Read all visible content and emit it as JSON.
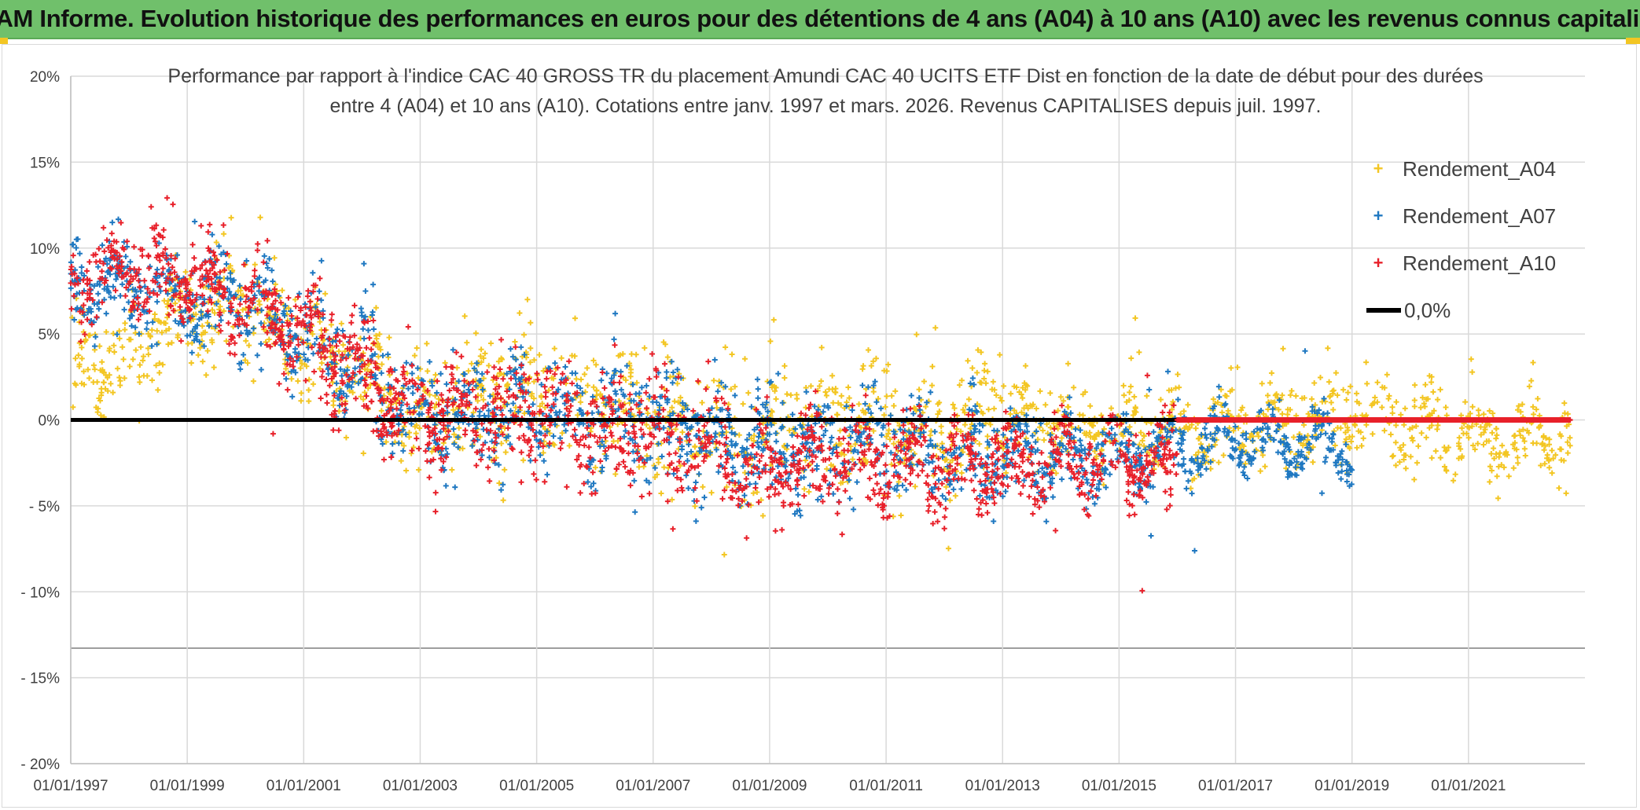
{
  "header": {
    "title": "ADAM Informe. Evolution historique des performances en euros pour des détentions de 4 ans (A04) à 10 ans (A10) avec les revenus connus capitalisés"
  },
  "colors": {
    "banner": "#70c06b",
    "A04": "#f3c623",
    "A07": "#1f78c1",
    "A10": "#e8202a",
    "zero_line": "#000000",
    "grid": "#d9d9d9"
  },
  "chart_data": {
    "type": "scatter",
    "title_line1": "Performance par rapport à l'indice CAC 40 GROSS TR  du placement Amundi CAC 40 UCITS ETF Dist en fonction de la date de début pour des durées",
    "title_line2": "entre 4 (A04) et 10 ans (A10). Cotations entre janv. 1997 et mars. 2026. Revenus CAPITALISES depuis juil. 1997.",
    "xlabel": "",
    "ylabel": "",
    "x_start_year": 1997.0,
    "x_end_year": 2023.0,
    "xlim_years": [
      1997.0,
      2023.0
    ],
    "ylim": [
      -20,
      20
    ],
    "y_ticks": [
      20,
      15,
      10,
      5,
      0,
      -5,
      -10,
      -15,
      -20
    ],
    "y_tick_labels": [
      "20%",
      "15%",
      "10%",
      "5%",
      "0%",
      "- 5%",
      "- 10%",
      "- 15%",
      "- 20%"
    ],
    "x_ticks_years": [
      1997,
      1999,
      2001,
      2003,
      2005,
      2007,
      2009,
      2011,
      2013,
      2015,
      2017,
      2019,
      2021
    ],
    "x_tick_labels": [
      "01/01/1997",
      "01/01/1999",
      "01/01/2001",
      "01/01/2003",
      "01/01/2005",
      "01/01/2007",
      "01/01/2009",
      "01/01/2011",
      "01/01/2013",
      "01/01/2015",
      "01/01/2017",
      "01/01/2019",
      "01/01/2021"
    ],
    "reference_line": {
      "name": "0,0%",
      "y": 0
    },
    "series": [
      {
        "name": "Rendement_A04",
        "marker": "+",
        "x_end_year": 2022.75,
        "trend": [
          [
            1997.0,
            3.0
          ],
          [
            1998.0,
            4.0
          ],
          [
            1999.0,
            6.0
          ],
          [
            2000.0,
            7.0
          ],
          [
            2001.0,
            4.0
          ],
          [
            2002.0,
            3.0
          ],
          [
            2003.0,
            0.0
          ],
          [
            2004.0,
            1.0
          ],
          [
            2005.0,
            2.0
          ],
          [
            2006.0,
            1.5
          ],
          [
            2007.0,
            0.5
          ],
          [
            2008.0,
            -1.0
          ],
          [
            2009.0,
            -0.5
          ],
          [
            2010.0,
            0.0
          ],
          [
            2011.0,
            -0.5
          ],
          [
            2012.0,
            -0.5
          ],
          [
            2013.0,
            0.0
          ],
          [
            2014.0,
            0.0
          ],
          [
            2015.0,
            -0.5
          ],
          [
            2016.0,
            -0.5
          ],
          [
            2017.0,
            -0.5
          ],
          [
            2018.0,
            0.0
          ],
          [
            2019.0,
            0.5
          ],
          [
            2020.0,
            0.0
          ],
          [
            2021.0,
            -1.0
          ],
          [
            2022.75,
            -1.0
          ]
        ],
        "spread": [
          [
            1997.0,
            2.0
          ],
          [
            2000.0,
            2.5
          ],
          [
            2004.0,
            2.8
          ],
          [
            2008.0,
            3.2
          ],
          [
            2012.0,
            2.5
          ],
          [
            2016.0,
            1.8
          ],
          [
            2022.75,
            1.8
          ]
        ]
      },
      {
        "name": "Rendement_A07",
        "marker": "+",
        "x_end_year": 2019.0,
        "trend": [
          [
            1997.0,
            8.0
          ],
          [
            1998.0,
            8.0
          ],
          [
            1999.0,
            7.0
          ],
          [
            2000.0,
            7.0
          ],
          [
            2001.0,
            5.0
          ],
          [
            2002.0,
            3.0
          ],
          [
            2003.0,
            0.0
          ],
          [
            2004.0,
            0.5
          ],
          [
            2005.0,
            0.5
          ],
          [
            2006.0,
            0.0
          ],
          [
            2007.0,
            0.0
          ],
          [
            2008.0,
            -1.0
          ],
          [
            2009.0,
            -1.5
          ],
          [
            2010.0,
            -1.5
          ],
          [
            2011.0,
            -1.5
          ],
          [
            2012.0,
            -2.0
          ],
          [
            2013.0,
            -2.0
          ],
          [
            2014.0,
            -2.0
          ],
          [
            2015.0,
            -2.0
          ],
          [
            2016.0,
            -1.5
          ],
          [
            2017.0,
            -1.0
          ],
          [
            2018.0,
            -1.5
          ],
          [
            2019.0,
            -1.5
          ]
        ],
        "spread": [
          [
            1997.0,
            1.8
          ],
          [
            2002.0,
            2.2
          ],
          [
            2008.0,
            2.6
          ],
          [
            2012.0,
            2.0
          ],
          [
            2016.0,
            1.2
          ],
          [
            2019.0,
            1.2
          ]
        ]
      },
      {
        "name": "Rendement_A10",
        "marker": "+",
        "x_end_year": 2016.0,
        "tail_zero_to_year": 2022.75,
        "trend": [
          [
            1997.0,
            8.5
          ],
          [
            1998.0,
            9.0
          ],
          [
            1999.0,
            8.0
          ],
          [
            2000.0,
            7.0
          ],
          [
            2001.0,
            5.0
          ],
          [
            2002.0,
            2.5
          ],
          [
            2003.0,
            0.0
          ],
          [
            2004.0,
            0.5
          ],
          [
            2005.0,
            0.5
          ],
          [
            2006.0,
            -0.5
          ],
          [
            2007.0,
            -1.0
          ],
          [
            2008.0,
            -2.0
          ],
          [
            2009.0,
            -2.5
          ],
          [
            2010.0,
            -2.5
          ],
          [
            2011.0,
            -2.5
          ],
          [
            2012.0,
            -2.5
          ],
          [
            2013.0,
            -2.5
          ],
          [
            2014.0,
            -2.5
          ],
          [
            2015.0,
            -2.5
          ],
          [
            2016.0,
            -2.5
          ]
        ],
        "spread": [
          [
            1997.0,
            1.8
          ],
          [
            2002.0,
            2.2
          ],
          [
            2008.0,
            2.4
          ],
          [
            2012.0,
            1.8
          ],
          [
            2016.0,
            1.6
          ]
        ]
      }
    ]
  }
}
